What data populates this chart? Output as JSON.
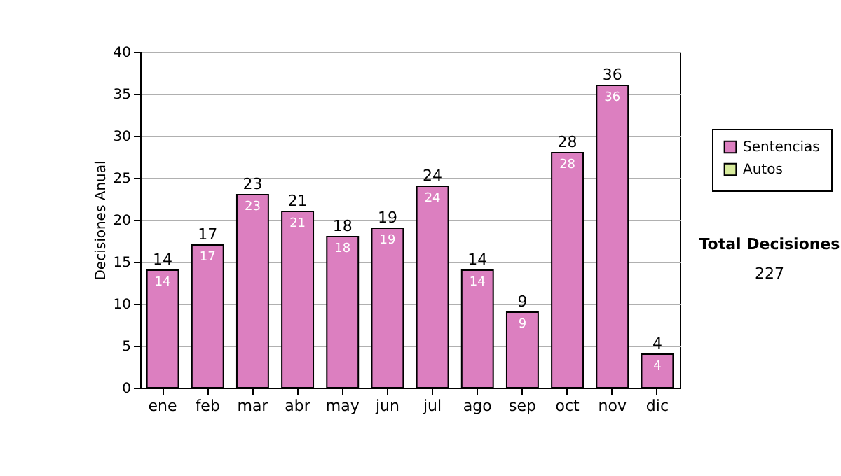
{
  "chart_data": {
    "type": "bar",
    "stacked": true,
    "categories": [
      "ene",
      "feb",
      "mar",
      "abr",
      "may",
      "jun",
      "jul",
      "ago",
      "sep",
      "oct",
      "nov",
      "dic"
    ],
    "series": [
      {
        "name": "Sentencias",
        "color": "#dc7fc0",
        "values": [
          14,
          17,
          23,
          21,
          18,
          19,
          24,
          14,
          9,
          28,
          36,
          4
        ]
      },
      {
        "name": "Autos",
        "color": "#d8ec9c",
        "values": [
          null,
          null,
          null,
          null,
          null,
          null,
          null,
          null,
          null,
          null,
          null,
          null
        ]
      }
    ],
    "totals": [
      "14",
      "17",
      "23",
      "21",
      "18",
      "19",
      "24",
      "14",
      "9",
      "28",
      "36",
      "4"
    ],
    "data_labels": true,
    "ylabel": "Decisiones Anual",
    "ylim": [
      0,
      40
    ],
    "yticks": [
      0,
      5,
      10,
      15,
      20,
      25,
      30,
      35,
      40
    ],
    "grid": "y",
    "legend": "right",
    "annotations": [
      "Total Decisiones",
      "227"
    ]
  }
}
